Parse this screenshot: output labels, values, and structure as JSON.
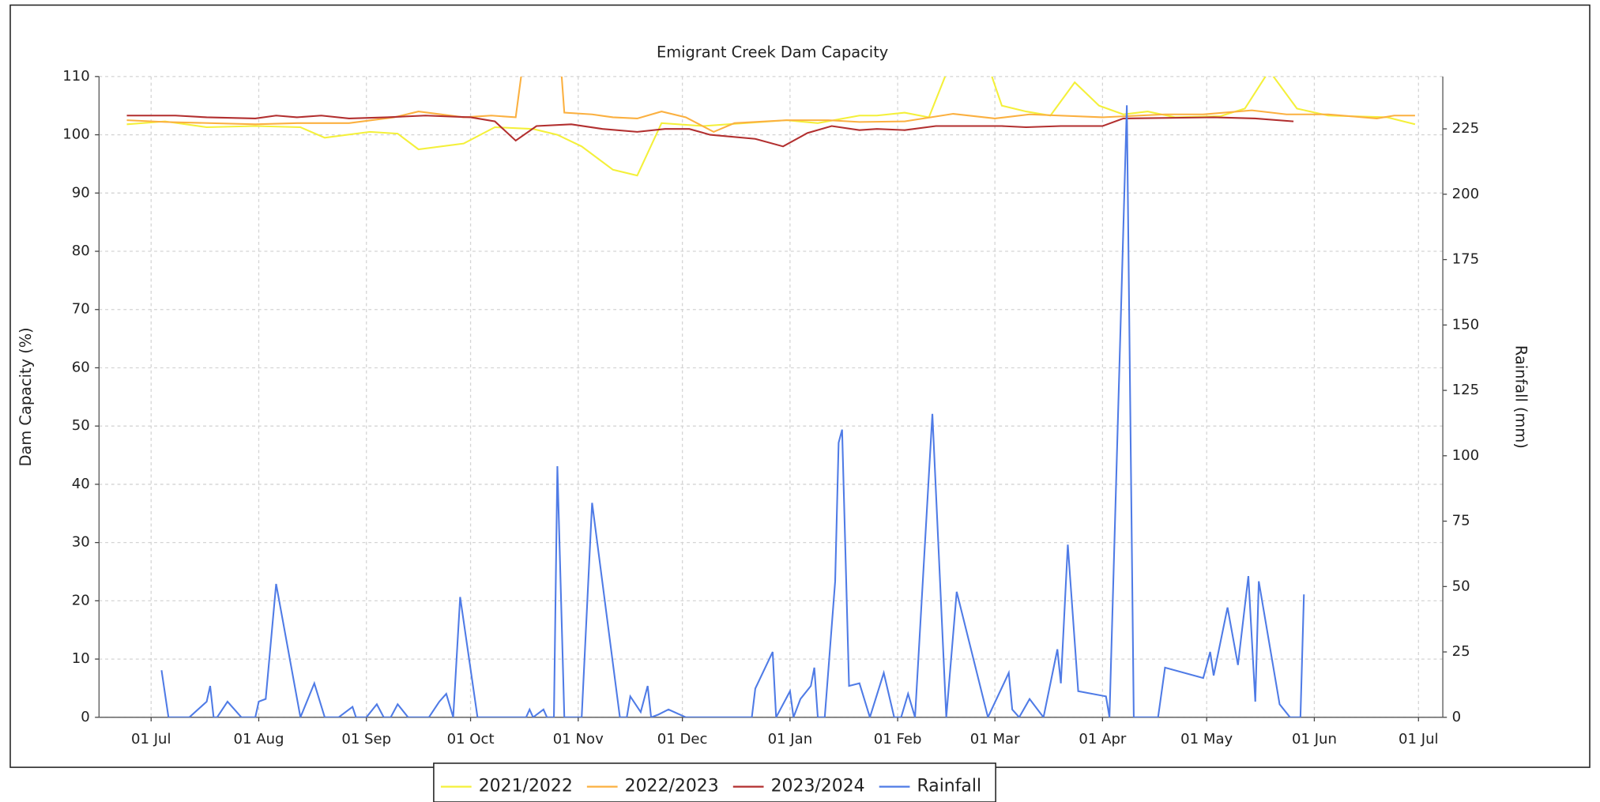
{
  "chart_data": {
    "type": "line",
    "title": "Emigrant Creek Dam Capacity",
    "y_label": "Dam Capacity (%)",
    "y2_label": "Rainfall (mm)",
    "xlim": [
      "16 Jun",
      "08 Jul"
    ],
    "xticks": [
      "01 Jul",
      "01 Aug",
      "01 Sep",
      "01 Oct",
      "01 Nov",
      "01 Dec",
      "01 Jan",
      "01 Feb",
      "01 Mar",
      "01 Apr",
      "01 May",
      "01 Jun",
      "01 Jul"
    ],
    "ylim": [
      0,
      110
    ],
    "yticks": [
      0,
      10,
      20,
      30,
      40,
      50,
      60,
      70,
      80,
      90,
      100,
      110
    ],
    "y2lim": [
      0,
      245
    ],
    "y2ticks": [
      0,
      25,
      50,
      75,
      100,
      125,
      150,
      175,
      200,
      225
    ],
    "grid": true,
    "legend": "bottom",
    "series": [
      {
        "name": "2021/2022",
        "color": "#f4f03a",
        "x": [
          "24 Jun",
          "05 Jul",
          "17 Jul",
          "31 Jul",
          "13 Aug",
          "20 Aug",
          "02 Sep",
          "10 Sep",
          "16 Sep",
          "29 Sep",
          "08 Oct",
          "19 Oct",
          "26 Oct",
          "02 Nov",
          "11 Nov",
          "18 Nov",
          "25 Nov",
          "07 Dec",
          "19 Dec",
          "31 Dec",
          "09 Jan",
          "21 Jan",
          "26 Jan",
          "03 Feb",
          "10 Feb",
          "16 Feb",
          "27 Feb",
          "03 Mar",
          "10 Mar",
          "17 Mar",
          "24 Mar",
          "31 Mar",
          "07 Apr",
          "14 Apr",
          "22 Apr",
          "05 May",
          "12 May",
          "19 May",
          "27 May",
          "05 Jun",
          "22 Jun",
          "30 Jun"
        ],
        "values": [
          101.8,
          102.3,
          101.3,
          101.5,
          101.3,
          99.5,
          100.5,
          100.2,
          97.5,
          98.5,
          101.3,
          101,
          100,
          98,
          94,
          93,
          102,
          101.5,
          102,
          102.5,
          102,
          103.3,
          103.3,
          103.8,
          103,
          112,
          112,
          105,
          104,
          103.3,
          109,
          105,
          103.5,
          104,
          103,
          103.2,
          104.5,
          111,
          104.5,
          103.3,
          103,
          101.8
        ]
      },
      {
        "name": "2022/2023",
        "color": "#fbb040",
        "x": [
          "24 Jun",
          "05 Jul",
          "31 Jul",
          "12 Aug",
          "27 Aug",
          "09 Sep",
          "16 Sep",
          "29 Sep",
          "07 Oct",
          "14 Oct",
          "16 Oct",
          "27 Oct",
          "28 Oct",
          "05 Nov",
          "11 Nov",
          "18 Nov",
          "25 Nov",
          "02 Dec",
          "10 Dec",
          "16 Dec",
          "31 Dec",
          "12 Jan",
          "21 Jan",
          "03 Feb",
          "17 Feb",
          "01 Mar",
          "11 Mar",
          "01 Apr",
          "19 Apr",
          "30 Apr",
          "14 May",
          "24 May",
          "05 Jun",
          "19 Jun",
          "24 Jun",
          "30 Jun"
        ],
        "values": [
          102.5,
          102.2,
          101.8,
          102,
          102,
          103,
          104,
          103,
          103.3,
          103,
          112,
          112,
          103.8,
          103.5,
          103,
          102.8,
          104,
          103,
          100.5,
          102,
          102.5,
          102.5,
          102.2,
          102.3,
          103.6,
          102.8,
          103.5,
          103,
          103.5,
          103.5,
          104.2,
          103.5,
          103.5,
          102.8,
          103.3,
          103.3
        ]
      },
      {
        "name": "2023/2024",
        "color": "#b22f2f",
        "x": [
          "24 Jun",
          "08 Jul",
          "17 Jul",
          "31 Jul",
          "06 Aug",
          "12 Aug",
          "19 Aug",
          "27 Aug",
          "07 Sep",
          "18 Sep",
          "01 Oct",
          "08 Oct",
          "14 Oct",
          "20 Oct",
          "30 Oct",
          "08 Nov",
          "18 Nov",
          "26 Nov",
          "03 Dec",
          "09 Dec",
          "22 Dec",
          "30 Dec",
          "06 Jan",
          "13 Jan",
          "21 Jan",
          "26 Jan",
          "03 Feb",
          "12 Feb",
          "03 Mar",
          "10 Mar",
          "20 Mar",
          "01 Apr",
          "07 Apr",
          "03 May",
          "15 May",
          "26 May"
        ],
        "values": [
          103.3,
          103.3,
          103,
          102.8,
          103.3,
          103,
          103.3,
          102.8,
          103,
          103.3,
          103,
          102.3,
          99,
          101.5,
          101.8,
          101,
          100.5,
          101,
          101,
          100,
          99.3,
          98,
          100.3,
          101.5,
          100.8,
          101,
          100.8,
          101.5,
          101.5,
          101.3,
          101.5,
          101.5,
          102.8,
          103,
          102.8,
          102.3
        ]
      },
      {
        "name": "Rainfall",
        "color": "#4f7be6",
        "axis": "y2",
        "x": [
          "04 Jul",
          "06 Jul",
          "12 Jul",
          "17 Jul",
          "18 Jul",
          "19 Jul",
          "20 Jul",
          "23 Jul",
          "27 Jul",
          "31 Jul",
          "01 Aug",
          "03 Aug",
          "06 Aug",
          "13 Aug",
          "17 Aug",
          "20 Aug",
          "24 Aug",
          "28 Aug",
          "29 Aug",
          "01 Sep",
          "04 Sep",
          "06 Sep",
          "08 Sep",
          "10 Sep",
          "13 Sep",
          "19 Sep",
          "22 Sep",
          "24 Sep",
          "26 Sep",
          "28 Sep",
          "03 Oct",
          "17 Oct",
          "18 Oct",
          "19 Oct",
          "22 Oct",
          "23 Oct",
          "25 Oct",
          "26 Oct",
          "28 Oct",
          "02 Nov",
          "05 Nov",
          "13 Nov",
          "15 Nov",
          "16 Nov",
          "19 Nov",
          "21 Nov",
          "22 Nov",
          "24 Nov",
          "27 Nov",
          "02 Dec",
          "21 Dec",
          "22 Dec",
          "27 Dec",
          "28 Dec",
          "01 Jan",
          "02 Jan",
          "04 Jan",
          "07 Jan",
          "08 Jan",
          "09 Jan",
          "11 Jan",
          "14 Jan",
          "15 Jan",
          "16 Jan",
          "18 Jan",
          "21 Jan",
          "24 Jan",
          "28 Jan",
          "31 Jan",
          "02 Feb",
          "04 Feb",
          "06 Feb",
          "11 Feb",
          "15 Feb",
          "18 Feb",
          "27 Feb",
          "05 Mar",
          "06 Mar",
          "08 Mar",
          "11 Mar",
          "15 Mar",
          "19 Mar",
          "20 Mar",
          "22 Mar",
          "25 Mar",
          "02 Apr",
          "03 Apr",
          "08 Apr",
          "10 Apr",
          "17 Apr",
          "19 Apr",
          "30 Apr",
          "02 May",
          "03 May",
          "07 May",
          "10 May",
          "13 May",
          "15 May",
          "16 May",
          "22 May",
          "25 May",
          "28 May",
          "29 May"
        ],
        "values": [
          18,
          0,
          0,
          6,
          12,
          0,
          0,
          6,
          0,
          0,
          6,
          7,
          51,
          0,
          13,
          0,
          0,
          4,
          0,
          0,
          5,
          0,
          0,
          5,
          0,
          0,
          6,
          9,
          0,
          46,
          0,
          0,
          3,
          0,
          3,
          0,
          0,
          96,
          0,
          0,
          82,
          0,
          0,
          8,
          2,
          12,
          0,
          1,
          3,
          0,
          0,
          11,
          25,
          0,
          10,
          0,
          7,
          12,
          19,
          0,
          0,
          52,
          105,
          110,
          12,
          13,
          0,
          17,
          0,
          0,
          9,
          0,
          116,
          0,
          48,
          0,
          17,
          3,
          0,
          7,
          0,
          26,
          13,
          66,
          10,
          8,
          0,
          234,
          0,
          0,
          19,
          15,
          25,
          16,
          42,
          20,
          54,
          6,
          52,
          5,
          0,
          0,
          47
        ]
      }
    ]
  }
}
